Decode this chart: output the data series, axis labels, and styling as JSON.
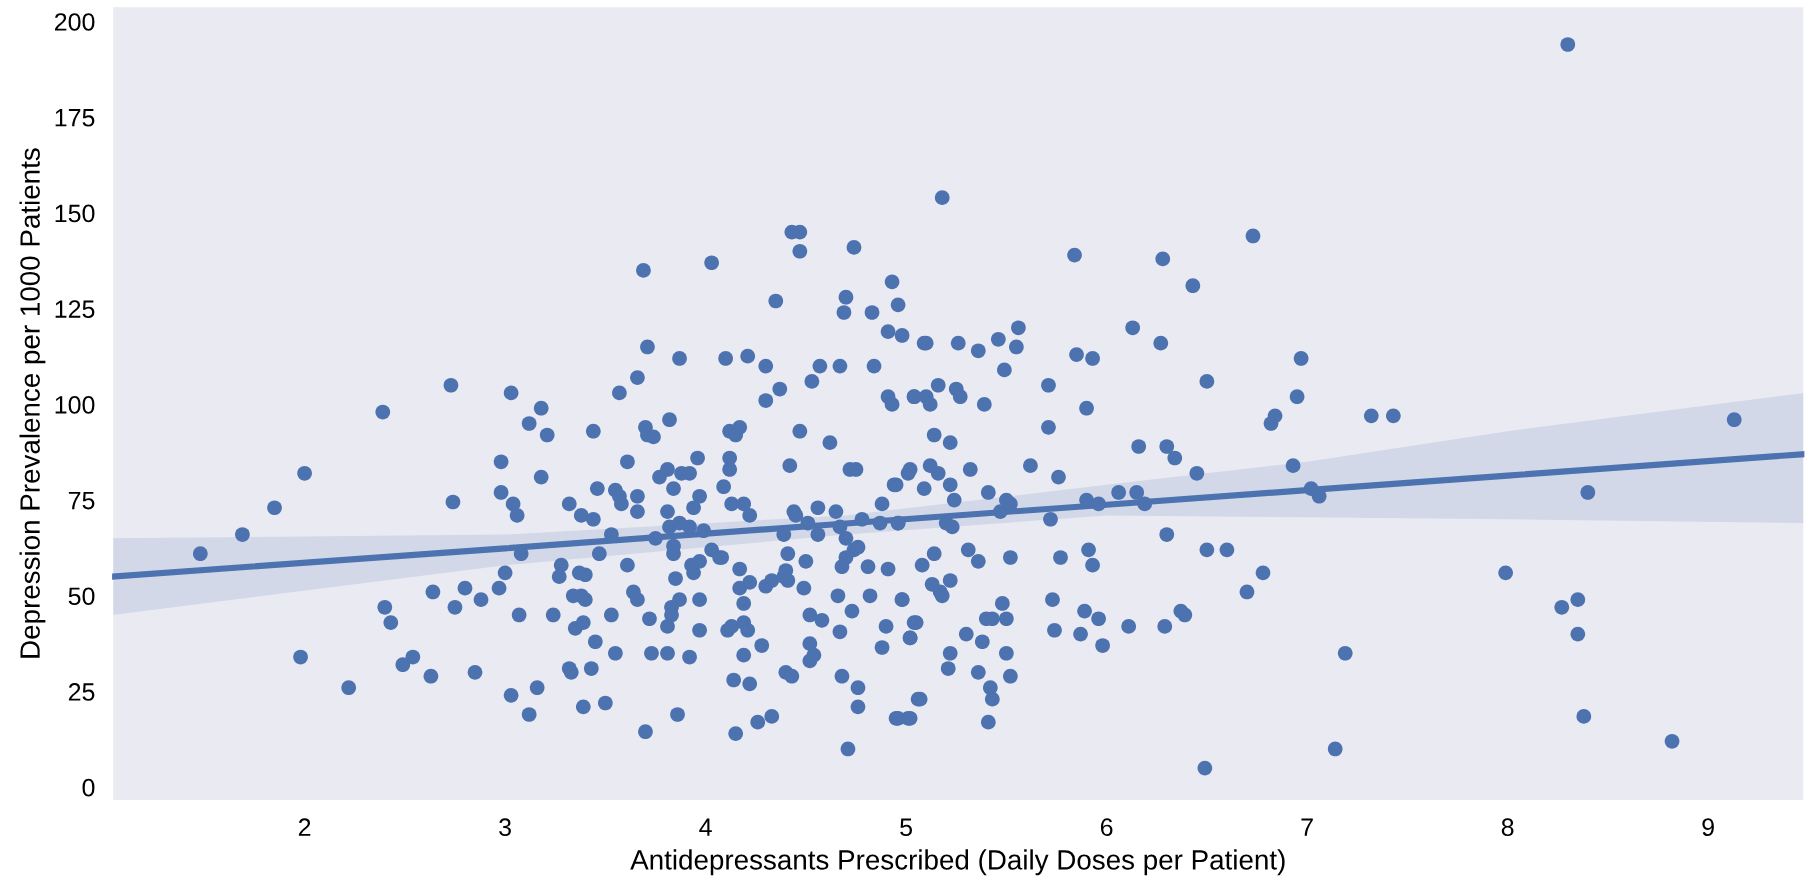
{
  "chart_data": {
    "type": "scatter",
    "xlabel": "Antidepressants Prescribed (Daily Doses per Patient)",
    "ylabel": "Depression Prevalence per 1000 Patients",
    "xlim": [
      1.04,
      9.48
    ],
    "ylim": [
      -3.6,
      204
    ],
    "xticks": [
      2,
      3,
      4,
      5,
      6,
      7,
      8,
      9
    ],
    "yticks": [
      0,
      25,
      50,
      75,
      100,
      125,
      150,
      175,
      200
    ],
    "grid": false,
    "marker": "circle",
    "series": [
      {
        "color": "#4c72b0",
        "x": [
          1.48,
          1.69,
          1.85,
          2.0,
          1.98,
          2.22,
          2.39,
          2.4,
          2.43,
          2.49,
          2.54,
          2.63,
          2.64,
          2.73,
          2.74,
          2.75,
          2.8,
          2.88,
          2.85,
          2.98,
          2.98,
          2.97,
          3.0,
          3.03,
          3.03,
          3.12,
          3.04,
          3.06,
          3.08,
          3.07,
          3.12,
          3.18,
          3.21,
          3.18,
          3.16,
          3.24,
          3.32,
          3.28,
          3.27,
          3.32,
          3.33,
          3.38,
          3.44,
          3.34,
          3.38,
          3.4,
          3.37,
          3.4,
          3.35,
          3.39,
          3.44,
          3.39,
          3.43,
          3.5,
          3.45,
          3.47,
          3.46,
          3.53,
          3.55,
          3.53,
          3.57,
          3.61,
          3.55,
          3.57,
          3.58,
          3.61,
          3.64,
          3.66,
          3.66,
          3.66,
          3.66,
          3.69,
          3.71,
          3.7,
          3.71,
          3.74,
          3.72,
          3.73,
          3.7,
          3.75,
          3.77,
          3.81,
          3.82,
          3.81,
          3.81,
          3.81,
          3.82,
          3.84,
          3.84,
          3.87,
          3.84,
          3.83,
          3.83,
          3.85,
          3.87,
          3.87,
          3.86,
          3.88,
          3.92,
          3.92,
          3.94,
          3.92,
          3.96,
          3.97,
          3.93,
          3.94,
          3.97,
          3.97,
          3.97,
          3.99,
          4.03,
          4.07,
          4.08,
          4.03,
          4.1,
          4.12,
          4.17,
          4.15,
          4.09,
          4.12,
          4.12,
          4.13,
          4.19,
          4.22,
          4.17,
          4.17,
          4.19,
          4.22,
          4.11,
          4.13,
          4.19,
          4.21,
          4.19,
          4.14,
          4.22,
          4.15,
          4.21,
          4.26,
          4.33,
          4.28,
          4.3,
          4.3,
          4.37,
          4.35,
          4.3,
          4.33,
          4.39,
          4.41,
          4.4,
          4.39,
          4.41,
          4.42,
          4.43,
          4.47,
          4.47,
          4.44,
          4.45,
          4.47,
          4.53,
          4.57,
          4.4,
          4.43,
          4.5,
          4.49,
          4.52,
          4.51,
          4.56,
          4.56,
          4.52,
          4.54,
          4.52,
          4.58,
          4.62,
          4.67,
          4.7,
          4.69,
          4.74,
          4.83,
          4.84,
          4.93,
          4.96,
          4.91,
          4.98,
          4.91,
          4.93,
          5.02,
          5.04,
          5.09,
          4.72,
          4.75,
          4.65,
          4.67,
          4.78,
          4.7,
          4.74,
          4.7,
          4.68,
          4.76,
          4.81,
          4.91,
          4.87,
          4.96,
          4.94,
          4.88,
          4.82,
          4.98,
          4.66,
          4.73,
          4.67,
          4.9,
          4.88,
          5.02,
          5.04,
          4.68,
          4.76,
          4.76,
          4.71,
          4.95,
          5.01,
          5.06,
          5.18,
          5.56,
          5.55,
          5.46,
          5.36,
          5.26,
          5.1,
          5.49,
          5.16,
          5.25,
          5.04,
          5.1,
          5.12,
          5.27,
          5.39,
          5.14,
          5.22,
          5.32,
          5.01,
          5.12,
          5.16,
          4.95,
          5.09,
          5.22,
          5.24,
          5.41,
          4.96,
          5.2,
          5.23,
          5.47,
          5.5,
          5.52,
          5.14,
          5.31,
          5.36,
          5.52,
          5.08,
          5.13,
          5.22,
          5.17,
          5.18,
          4.98,
          5.48,
          5.4,
          5.43,
          5.5,
          5.05,
          5.02,
          5.3,
          5.38,
          5.5,
          5.22,
          5.21,
          5.36,
          5.52,
          5.42,
          5.43,
          5.07,
          4.96,
          5.02,
          5.41,
          5.84,
          5.85,
          5.93,
          5.71,
          5.71,
          5.9,
          5.62,
          5.76,
          5.72,
          5.9,
          5.96,
          5.77,
          5.91,
          5.93,
          5.73,
          5.74,
          5.87,
          5.89,
          5.96,
          5.98,
          6.43,
          6.28,
          6.27,
          6.13,
          6.16,
          6.3,
          6.34,
          6.45,
          6.3,
          6.37,
          6.39,
          6.29,
          6.11,
          6.06,
          6.15,
          6.19,
          6.5,
          6.5,
          6.6,
          6.49,
          6.73,
          6.7,
          6.78,
          6.82,
          6.84,
          6.95,
          6.97,
          6.93,
          7.02,
          7.06,
          7.14,
          7.19,
          7.32,
          7.43,
          7.99,
          8.27,
          8.35,
          8.35,
          8.4,
          8.38,
          8.3,
          8.82,
          9.13
        ],
        "values": [
          61,
          66,
          73,
          82,
          34,
          26,
          98,
          47,
          43,
          32,
          34,
          29,
          51,
          105,
          74.5,
          47,
          52,
          49,
          30,
          77,
          85,
          52,
          56,
          103,
          24,
          19,
          74,
          71,
          61,
          45,
          95,
          99,
          92,
          81,
          26,
          45,
          74,
          58,
          55,
          31,
          30,
          71,
          70,
          50,
          50,
          49,
          56,
          55.5,
          41.5,
          43,
          93,
          21,
          31,
          22,
          38,
          61,
          78,
          45,
          35,
          66,
          103,
          85,
          77.6,
          76,
          74,
          58,
          51,
          49,
          76,
          72,
          107,
          135,
          115,
          94,
          92,
          91.5,
          44,
          35,
          14.5,
          65,
          81,
          83,
          96,
          72,
          42,
          35,
          68,
          63,
          61,
          69,
          78,
          47,
          45,
          54.5,
          112,
          49,
          19,
          82,
          82,
          34,
          73,
          68,
          86,
          76,
          58,
          56,
          59,
          49,
          41,
          67,
          62,
          60,
          60,
          137,
          112,
          93,
          94,
          92,
          78.5,
          86,
          83,
          74,
          74,
          71,
          57,
          52,
          48,
          53.5,
          41,
          42,
          43,
          41,
          34.5,
          28,
          27,
          14,
          112.6,
          17,
          18.5,
          37,
          110,
          101,
          104,
          127,
          52.5,
          54,
          55,
          54,
          56.6,
          66,
          61,
          84,
          145,
          145,
          140,
          72,
          71,
          93,
          106,
          110,
          30,
          29,
          59,
          52,
          45,
          69,
          73,
          66,
          37.5,
          34.5,
          33,
          43.6,
          90,
          110,
          128,
          124,
          141,
          124,
          110,
          132,
          126,
          119,
          118,
          102,
          100,
          83,
          102,
          116,
          83,
          83,
          72,
          68,
          70,
          65,
          62,
          60,
          57.6,
          62.7,
          57.6,
          57,
          69,
          69,
          79,
          74,
          50,
          49,
          50,
          46,
          40.6,
          42,
          36.5,
          39,
          43,
          29,
          26,
          21,
          10,
          18,
          18,
          23,
          154,
          120,
          115,
          117,
          114,
          116,
          116,
          109,
          105,
          104,
          102,
          102,
          100,
          102,
          100,
          92,
          90,
          83,
          82,
          84,
          82,
          79,
          78,
          79,
          75,
          77,
          69,
          69,
          68,
          72,
          75,
          74,
          61,
          62,
          59,
          60,
          58,
          53,
          54,
          51,
          50,
          49,
          48,
          44,
          44,
          44,
          43,
          39,
          40,
          38,
          35,
          35,
          31,
          30,
          29,
          26,
          23,
          23,
          18,
          18,
          17,
          139,
          113,
          112,
          105,
          94,
          99,
          84,
          81,
          70,
          75,
          74,
          60,
          62,
          58,
          49,
          41,
          40,
          46,
          44,
          37,
          131,
          138,
          116,
          120,
          89,
          89,
          86,
          82,
          66,
          46,
          45,
          42,
          42,
          77,
          77,
          74,
          106,
          62,
          62,
          5,
          144,
          51,
          56,
          95,
          97,
          102,
          112,
          84,
          78,
          76,
          10,
          35,
          97,
          97,
          56,
          47,
          49,
          40,
          77,
          18.5,
          194,
          12,
          96
        ]
      },
      {
        "type": "line",
        "color": "#4c72b0",
        "marker": "none",
        "x": [
          1.04,
          3,
          4.7,
          6,
          7,
          8,
          9.48
        ],
        "values": [
          55,
          62.4,
          68.9,
          73.8,
          77.6,
          81.4,
          87
        ],
        "lower": [
          45,
          58,
          66,
          71,
          70.5,
          70,
          69
        ],
        "upper": [
          65,
          66,
          71,
          79,
          85,
          93,
          103
        ]
      }
    ]
  }
}
